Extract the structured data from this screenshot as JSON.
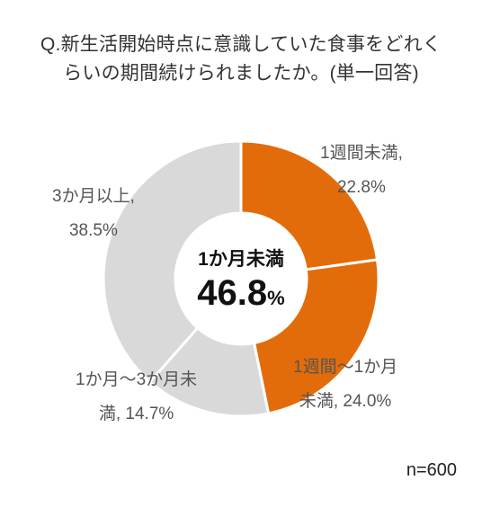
{
  "title_lines": [
    "Q.新生活開始時点に意識していた食事をどれく",
    "らいの期間続けられましたか。(単一回答)"
  ],
  "chart_data": {
    "type": "pie",
    "donut": true,
    "categories": [
      "1週間未満",
      "1週間～1か月未満",
      "1か月～3か月未満",
      "3か月以上"
    ],
    "values": [
      22.8,
      24.0,
      14.7,
      38.5
    ],
    "unit": "%",
    "colors": [
      "#E36C0A",
      "#E36C0A",
      "#D9D9D9",
      "#D9D9D9"
    ],
    "labels": [
      [
        "1週間未満,",
        "22.8%"
      ],
      [
        "1週間～1か月",
        "未満, 24.0%"
      ],
      [
        "1か月～3か月未",
        "満, 14.7%"
      ],
      [
        "3か月以上,",
        "38.5%"
      ]
    ],
    "center": {
      "label": "1か月未満",
      "value": "46.8",
      "unit": "%"
    },
    "sample_size": "n=600"
  }
}
